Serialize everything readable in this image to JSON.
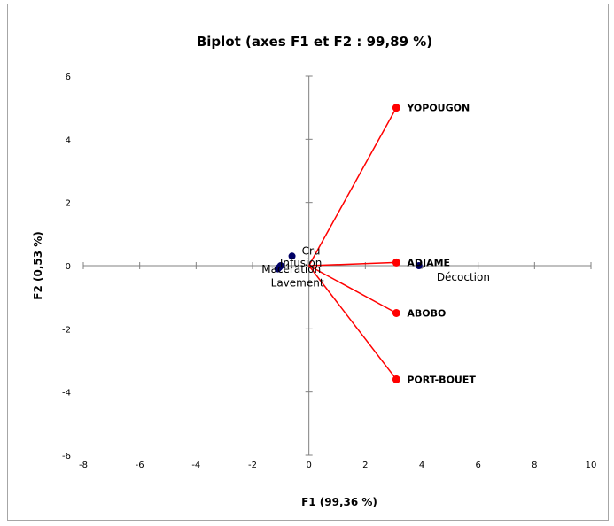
{
  "chart_data": {
    "type": "scatter",
    "title": "Biplot (axes F1 et F2 : 99,89 %)",
    "xlabel": "F1 (99,36 %)",
    "ylabel": "F2 (0,53 %)",
    "xlim": [
      -8,
      10
    ],
    "ylim": [
      -6,
      6
    ],
    "x_ticks": [
      -8,
      -6,
      -4,
      -2,
      0,
      2,
      4,
      6,
      8,
      10
    ],
    "y_ticks": [
      -6,
      -4,
      -2,
      0,
      2,
      4,
      6
    ],
    "grid": false,
    "series": [
      {
        "color": "#ff0000",
        "vectors_from_origin": true,
        "points": [
          {
            "label": "YOPOUGON",
            "x": 3.1,
            "y": 5.0
          },
          {
            "label": "ADJAME",
            "x": 3.1,
            "y": 0.1
          },
          {
            "label": "ABOBO",
            "x": 3.1,
            "y": -1.5
          },
          {
            "label": "PORT-BOUET",
            "x": 3.1,
            "y": -3.6
          }
        ]
      },
      {
        "color": "#000066",
        "vectors_from_origin": false,
        "points": [
          {
            "label": "Cru",
            "x": -0.6,
            "y": 0.3
          },
          {
            "label": "Infusion",
            "x": -1.0,
            "y": 0.0
          },
          {
            "label": "Macération",
            "x": -1.05,
            "y": -0.05
          },
          {
            "label": "Lavement",
            "x": -1.1,
            "y": -0.1
          },
          {
            "label": "Décoction",
            "x": 3.9,
            "y": 0.0
          }
        ]
      }
    ]
  }
}
